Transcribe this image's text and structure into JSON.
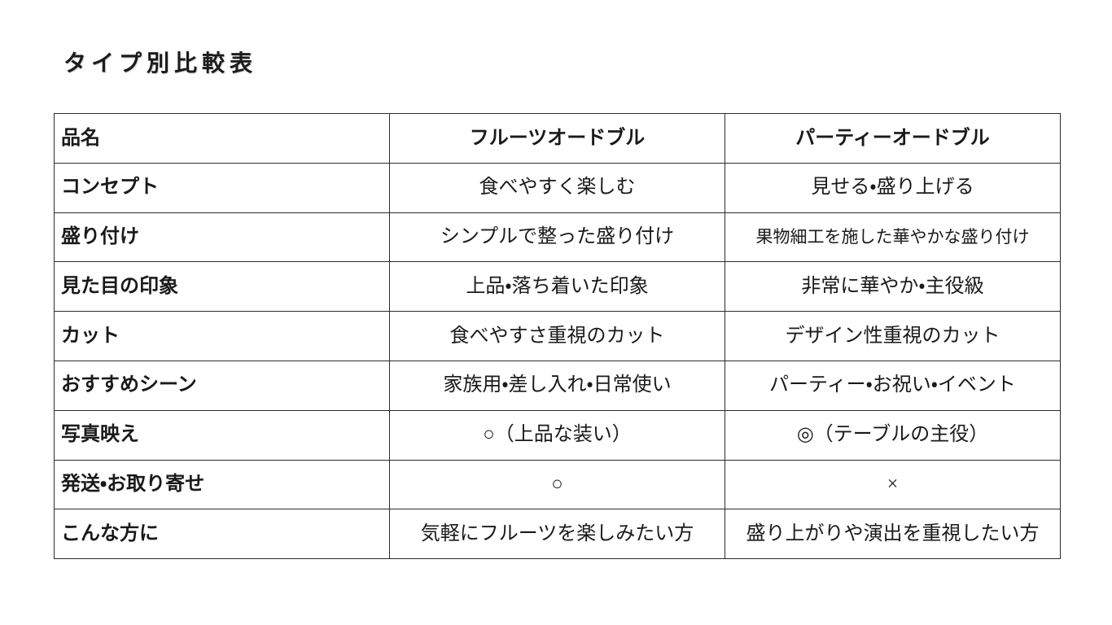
{
  "page_title": "タイプ別比較表",
  "table": {
    "headers": [
      "品名",
      "フルーツオードブル",
      "パーティーオードブル"
    ],
    "rows": [
      {
        "label": "コンセプト",
        "fruit": "食べやすく楽しむ",
        "party": "見せる・盛り上げる"
      },
      {
        "label": "盛り付け",
        "fruit": "シンプルで整った盛り付け",
        "party": "果物細工を施した華やかな盛り付け"
      },
      {
        "label": "見た目の印象",
        "fruit": "上品・落ち着いた印象",
        "party": "非常に華やか・主役級"
      },
      {
        "label": "カット",
        "fruit": "食べやすさ重視のカット",
        "party": "デザイン性重視のカット"
      },
      {
        "label": "おすすめシーン",
        "fruit": "家族用・差し入れ・日常使い",
        "party": "パーティー・お祝い・イベント"
      },
      {
        "label": "写真映え",
        "fruit": "○（上品な装い）",
        "party": "◎（テーブルの主役）"
      },
      {
        "label": "発送・お取り寄せ",
        "fruit": "○",
        "party": "×"
      },
      {
        "label": "こんな方に",
        "fruit": "気軽にフルーツを楽しみたい方",
        "party": "盛り上がりや演出を重視したい方"
      }
    ]
  }
}
